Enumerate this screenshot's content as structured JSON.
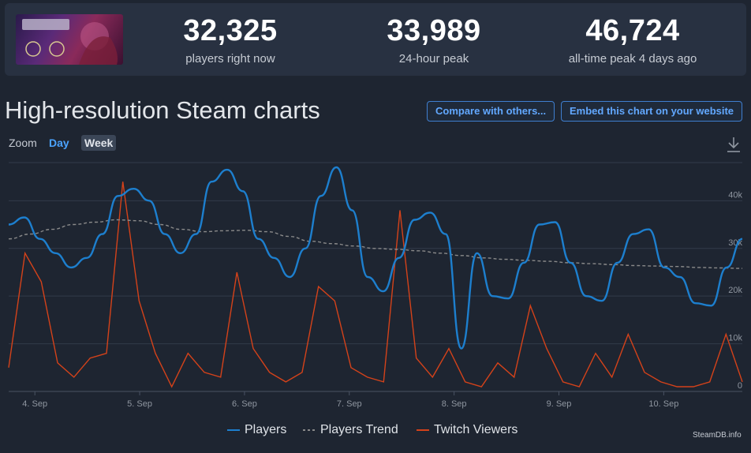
{
  "stats": [
    {
      "value": "32,325",
      "label": "players right now"
    },
    {
      "value": "33,989",
      "label": "24-hour peak"
    },
    {
      "value": "46,724",
      "label": "all-time peak 4 days ago"
    }
  ],
  "title": "High-resolution Steam charts",
  "buttons": {
    "compare": "Compare with others...",
    "embed": "Embed this chart on your website"
  },
  "zoom": {
    "label": "Zoom",
    "day": "Day",
    "week": "Week"
  },
  "legend": {
    "players": "Players",
    "trend": "Players Trend",
    "twitch": "Twitch Viewers"
  },
  "credit": "SteamDB.info",
  "colors": {
    "players": "#1d7fce",
    "trend": "#8a8a8a",
    "twitch": "#d4421a",
    "accent": "#62a8ff"
  },
  "chart_data": {
    "type": "line",
    "x_ticks": [
      "4. Sep",
      "5. Sep",
      "6. Sep",
      "7. Sep",
      "8. Sep",
      "9. Sep",
      "10. Sep"
    ],
    "y_ticks": [
      "0",
      "10k",
      "20k",
      "30k",
      "40k"
    ],
    "ylim": [
      0,
      48000
    ],
    "x_start": "4 Sep 00:00",
    "x_end": "10 Sep 23:00",
    "grid": true,
    "legend_position": "bottom",
    "series": [
      {
        "name": "Players",
        "color": "#1d7fce",
        "values": [
          35000,
          36500,
          32000,
          29000,
          26000,
          28000,
          33000,
          41000,
          42500,
          40000,
          33000,
          29000,
          33000,
          44000,
          46500,
          42000,
          32000,
          28000,
          24000,
          30000,
          41000,
          47000,
          38000,
          24000,
          21000,
          28000,
          36000,
          37500,
          33000,
          9000,
          29000,
          20000,
          19500,
          27000,
          35000,
          35500,
          27000,
          20000,
          19000,
          27000,
          33000,
          34000,
          26000,
          24000,
          18500,
          18000,
          26000,
          32000
        ]
      },
      {
        "name": "Players Trend",
        "color": "#8a8a8a",
        "values": [
          32000,
          33000,
          34000,
          35000,
          35500,
          36000,
          35800,
          35000,
          34000,
          33500,
          33700,
          33800,
          33500,
          32500,
          31500,
          31000,
          30500,
          30000,
          29800,
          29500,
          29000,
          28500,
          28000,
          27700,
          27500,
          27300,
          27000,
          26800,
          26600,
          26400,
          26300,
          26200,
          26000,
          25900,
          25800
        ]
      },
      {
        "name": "Twitch Viewers",
        "color": "#d4421a",
        "values": [
          5000,
          29000,
          23000,
          6000,
          3000,
          7000,
          8000,
          44000,
          19000,
          8000,
          1000,
          8000,
          4000,
          3000,
          25000,
          9000,
          4000,
          2000,
          4000,
          22000,
          19000,
          5000,
          3000,
          2000,
          38000,
          7000,
          3000,
          9000,
          2000,
          1000,
          6000,
          3000,
          18000,
          9000,
          2000,
          1000,
          8000,
          3000,
          12000,
          4000,
          2000,
          1000,
          1000,
          2000,
          12000,
          2000
        ]
      }
    ]
  }
}
